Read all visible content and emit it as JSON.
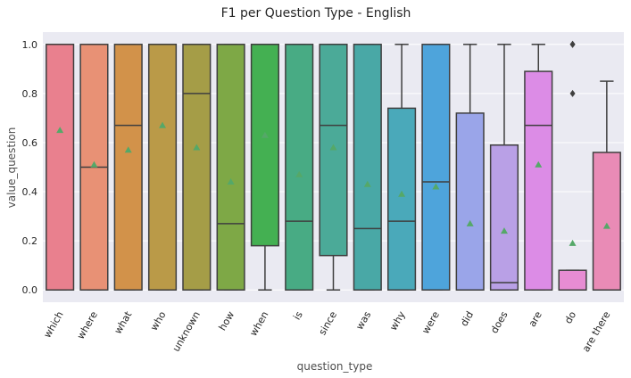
{
  "chart_data": {
    "type": "box",
    "title": "F1 per Question Type - English",
    "xlabel": "question_type",
    "ylabel": "value_question",
    "ylim": [
      -0.05,
      1.05
    ],
    "yticks": [
      "0.0",
      "0.2",
      "0.4",
      "0.6",
      "0.8",
      "1.0"
    ],
    "grid": true,
    "categories": [
      "which",
      "where",
      "what",
      "who",
      "unknown",
      "how",
      "when",
      "is",
      "since",
      "was",
      "why",
      "were",
      "did",
      "does",
      "are",
      "do",
      "are there"
    ],
    "boxes": [
      {
        "min": 0,
        "q1": 0,
        "median": 1.0,
        "q3": 1.0,
        "max": 1.0,
        "mean": 0.65,
        "color": "#e9808e"
      },
      {
        "min": 0,
        "q1": 0,
        "median": 0.5,
        "q3": 1.0,
        "max": 1.0,
        "mean": 0.51,
        "color": "#e89175"
      },
      {
        "min": 0,
        "q1": 0,
        "median": 0.67,
        "q3": 1.0,
        "max": 1.0,
        "mean": 0.57,
        "color": "#d2924a"
      },
      {
        "min": 0,
        "q1": 0,
        "median": 1.0,
        "q3": 1.0,
        "max": 1.0,
        "mean": 0.67,
        "color": "#ba9a48"
      },
      {
        "min": 0,
        "q1": 0,
        "median": 0.8,
        "q3": 1.0,
        "max": 1.0,
        "mean": 0.58,
        "color": "#a59d47"
      },
      {
        "min": 0,
        "q1": 0,
        "median": 0.27,
        "q3": 1.0,
        "max": 1.0,
        "mean": 0.44,
        "color": "#7ea846"
      },
      {
        "min": 0,
        "q1": 0.18,
        "median": 1.0,
        "q3": 1.0,
        "max": 1.0,
        "mean": 0.63,
        "color": "#44b052"
      },
      {
        "min": 0,
        "q1": 0,
        "median": 0.28,
        "q3": 1.0,
        "max": 1.0,
        "mean": 0.47,
        "color": "#48ab84"
      },
      {
        "min": 0,
        "q1": 0.14,
        "median": 0.67,
        "q3": 1.0,
        "max": 1.0,
        "mean": 0.58,
        "color": "#4baa98"
      },
      {
        "min": 0,
        "q1": 0,
        "median": 0.25,
        "q3": 1.0,
        "max": 1.0,
        "mean": 0.43,
        "color": "#49a8a6"
      },
      {
        "min": 0,
        "q1": 0,
        "median": 0.28,
        "q3": 0.74,
        "max": 1.0,
        "mean": 0.39,
        "color": "#4aa9ba"
      },
      {
        "min": 0,
        "q1": 0,
        "median": 0.44,
        "q3": 1.0,
        "max": 1.0,
        "mean": 0.42,
        "color": "#4ea4db"
      },
      {
        "min": 0,
        "q1": 0,
        "median": 0,
        "q3": 0.72,
        "max": 1.0,
        "mean": 0.27,
        "color": "#9aa5e9"
      },
      {
        "min": 0,
        "q1": 0,
        "median": 0.03,
        "q3": 0.59,
        "max": 1.0,
        "mean": 0.24,
        "color": "#b9a0e6"
      },
      {
        "min": 0,
        "q1": 0,
        "median": 0.67,
        "q3": 0.89,
        "max": 1.0,
        "mean": 0.51,
        "color": "#dc8ce6"
      },
      {
        "min": 0,
        "q1": 0,
        "median": 0,
        "q3": 0.08,
        "max": 0.08,
        "mean": 0.19,
        "color": "#e78cd3",
        "outliers": [
          0.8,
          1.0,
          1.0
        ]
      },
      {
        "min": 0,
        "q1": 0,
        "median": 0,
        "q3": 0.56,
        "max": 0.85,
        "mean": 0.26,
        "color": "#e98bb6"
      }
    ]
  }
}
